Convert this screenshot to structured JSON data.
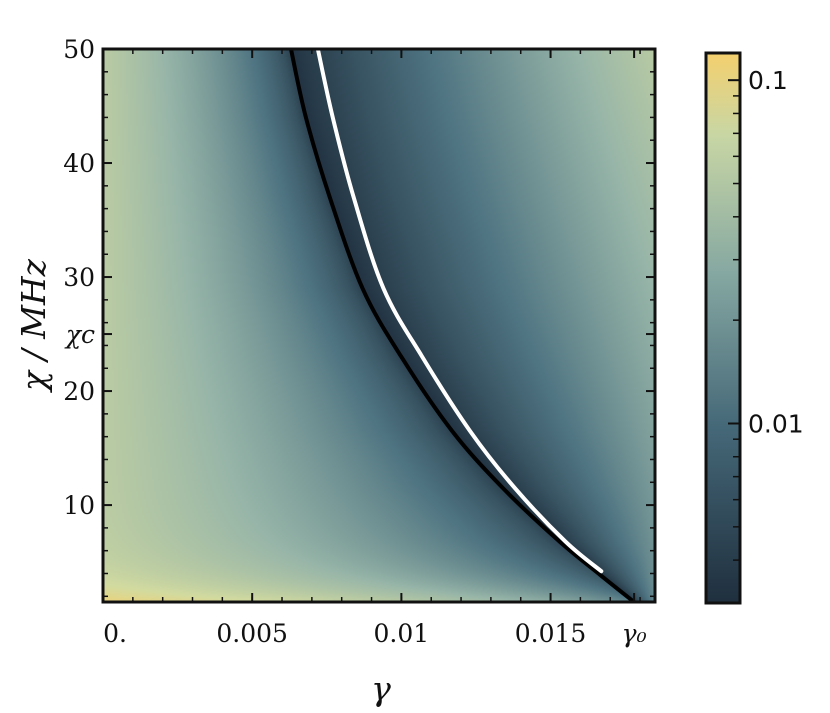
{
  "chart_data": {
    "type": "heatmap",
    "title": "",
    "xlabel": "γ",
    "ylabel": "χ / MHz",
    "xlim": [
      0,
      0.0185
    ],
    "ylim": [
      1.5,
      50
    ],
    "x_ticks": [
      {
        "value": 0,
        "label": "0."
      },
      {
        "value": 0.005,
        "label": "0.005"
      },
      {
        "value": 0.01,
        "label": "0.01"
      },
      {
        "value": 0.015,
        "label": "0.015"
      },
      {
        "value": 0.0178,
        "label": "γ₀"
      }
    ],
    "y_ticks": [
      {
        "value": 10,
        "label": "10"
      },
      {
        "value": 20,
        "label": "20"
      },
      {
        "value": 25,
        "label": "χc"
      },
      {
        "value": 30,
        "label": "30"
      },
      {
        "value": 40,
        "label": "40"
      },
      {
        "value": 50,
        "label": "50"
      }
    ],
    "colorbar": {
      "scale": "log",
      "range": [
        0.003,
        0.12
      ],
      "ticks": [
        {
          "value": 0.1,
          "label": "0.1"
        },
        {
          "value": 0.01,
          "label": "0.01"
        }
      ],
      "colors": [
        "#1f2f3e",
        "#4f7482",
        "#97b5a8",
        "#d2dba0",
        "#f4d06e"
      ]
    },
    "series": [
      {
        "color": "#000000",
        "x": [
          0.0063,
          0.0068,
          0.0076,
          0.0087,
          0.01,
          0.0117,
          0.0134,
          0.0153,
          0.0167,
          0.0178
        ],
        "y": [
          50,
          44,
          37,
          29,
          23,
          16.5,
          11.5,
          6.8,
          3.8,
          1.5
        ]
      },
      {
        "color": "#ffffff",
        "x": [
          0.0072,
          0.0077,
          0.0084,
          0.0094,
          0.0107,
          0.0123,
          0.0138,
          0.0155,
          0.0167
        ],
        "y": [
          50,
          44,
          37,
          29,
          23,
          16.5,
          11.5,
          6.8,
          4.2
        ]
      }
    ]
  }
}
